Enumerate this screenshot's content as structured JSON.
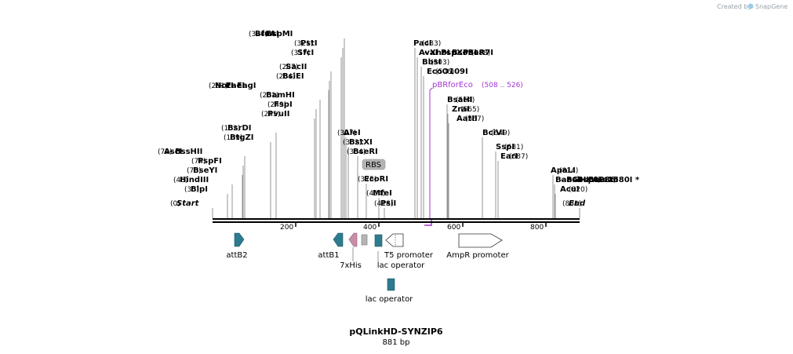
{
  "credit": {
    "text": "Created by",
    "brand": "SnapGene"
  },
  "map": {
    "title": "pQLinkHD-SYNZIP6",
    "length_label": "881 bp",
    "length": 881
  },
  "ticks": [
    "200",
    "400",
    "600",
    "800"
  ],
  "labels": [
    {
      "pos": "(0)",
      "items": [
        "Start"
      ],
      "italic": true
    },
    {
      "pos": "(35)",
      "items": [
        "BlpI"
      ]
    },
    {
      "pos": "(46)",
      "items": [
        "HindIII"
      ]
    },
    {
      "pos": "(70)",
      "items": [
        "BseYI"
      ]
    },
    {
      "pos": "(74)",
      "items": [
        "PspFI"
      ]
    },
    {
      "pos": "(79)",
      "items": [
        "AscI",
        "BssHII"
      ]
    },
    {
      "pos": "(139)",
      "items": [
        "BtgZI"
      ]
    },
    {
      "pos": "(152)",
      "items": [
        "BsrDI"
      ]
    },
    {
      "pos": "(245)",
      "items": [
        "PvuII"
      ]
    },
    {
      "pos": "(249)",
      "items": [
        "FspI"
      ]
    },
    {
      "pos": "(261)",
      "items": [
        "BamHI"
      ]
    },
    {
      "pos": "(281)",
      "items": [
        "NotI",
        "EaeI",
        "EagI"
      ]
    },
    {
      "pos": "(284)",
      "items": [
        "BsiEI"
      ]
    },
    {
      "pos": "(287)",
      "items": [
        "SacII"
      ]
    },
    {
      "pos": "(317)",
      "items": [
        "SfcI"
      ]
    },
    {
      "pos": "(321)",
      "items": [
        "PstI"
      ]
    },
    {
      "pos": "(324)",
      "items": [
        "BfuAI",
        "BspMI"
      ]
    },
    {
      "pos": "(327)",
      "items": [
        "AleI"
      ]
    },
    {
      "pos": "(332)",
      "items": [
        "BstXI"
      ]
    },
    {
      "pos": "(354)",
      "items": [
        "BseRI"
      ]
    },
    {
      "pos": "(375)",
      "items": [
        "EcoRI"
      ]
    },
    {
      "pos": "(404)",
      "items": [
        "MfeI"
      ]
    },
    {
      "pos": "(418)",
      "items": [
        "PsiI"
      ]
    },
    {
      "pos": "(483)",
      "items": [
        "PacI"
      ]
    },
    {
      "pos": "(488)",
      "items": [
        "AvaI",
        "XhoI",
        "PspXI",
        "BsoBI",
        "PaeR7I"
      ]
    },
    {
      "pos": "(503)",
      "items": [
        "BbsI"
      ]
    },
    {
      "pos": "(506)",
      "items": [
        "EcoO109I"
      ]
    },
    {
      "pos": "(564)",
      "items": [
        "BsaHI"
      ]
    },
    {
      "pos": "(565)",
      "items": [
        "ZraI"
      ]
    },
    {
      "pos": "(567)",
      "items": [
        "AatII"
      ]
    },
    {
      "pos": "(649)",
      "items": [
        "BciVI"
      ]
    },
    {
      "pos": "(681)",
      "items": [
        "SspI"
      ]
    },
    {
      "pos": "(687)",
      "items": [
        "EarI"
      ]
    },
    {
      "pos": "(814)",
      "items": [
        "ApaLI"
      ]
    },
    {
      "pos": "(818)",
      "items": [
        "BaeGI",
        "BsiHKAI",
        "Bsp1286I",
        "Bme1580I *"
      ]
    },
    {
      "pos": "(820)",
      "items": [
        "AcuI"
      ]
    },
    {
      "pos": "(881)",
      "items": [
        "End"
      ],
      "italic": true
    }
  ],
  "primer": {
    "name": "pBRforEco",
    "range": "(508 .. 526)",
    "color": "#a335d6"
  },
  "features": [
    {
      "name": "attB2",
      "color": "#2e7b8f"
    },
    {
      "name": "attB1",
      "color": "#2e7b8f"
    },
    {
      "name": "7xHis",
      "color": "#c98fa8"
    },
    {
      "name": "RBS",
      "color": "#b4b4b4"
    },
    {
      "name": "lac operator",
      "color": "#2e7b8f"
    },
    {
      "name": "T5 promoter",
      "color": "#ffffff"
    },
    {
      "name": "AmpR promoter",
      "color": "#ffffff"
    },
    {
      "name": "lac operator",
      "color": "#2e7b8f"
    }
  ]
}
